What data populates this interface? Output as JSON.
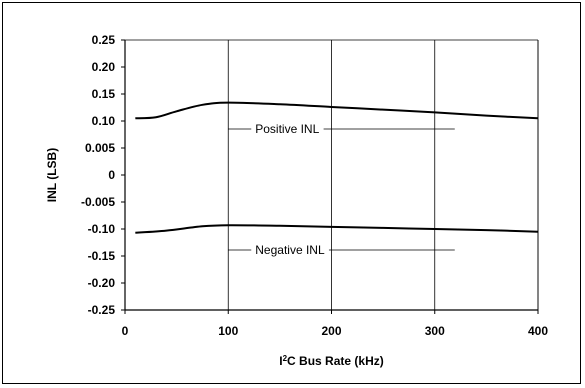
{
  "chart_data": {
    "type": "line",
    "title": "",
    "xlabel": {
      "prefix": "I",
      "sup": "2",
      "rest": "C Bus Rate (kHz)"
    },
    "ylabel": "INL (LSB)",
    "x_ticks": [
      "0",
      "100",
      "200",
      "300",
      "400"
    ],
    "x_tick_values": [
      0,
      100,
      200,
      300,
      400
    ],
    "xlim": [
      0,
      400
    ],
    "y_ticks": [
      "0.25",
      "0.20",
      "0.15",
      "0.10",
      "0.005",
      "0",
      "-0.005",
      "-0.10",
      "-0.15",
      "-0.20",
      "-0.25"
    ],
    "grid": {
      "vertical": true,
      "horizontal": false
    },
    "series": [
      {
        "name": "Positive INL",
        "x": [
          10,
          30,
          50,
          75,
          100,
          150,
          200,
          250,
          300,
          350,
          400
        ],
        "y": [
          0.105,
          0.107,
          0.118,
          0.13,
          0.134,
          0.131,
          0.126,
          0.121,
          0.116,
          0.11,
          0.105
        ]
      },
      {
        "name": "Negative INL",
        "x": [
          10,
          40,
          75,
          100,
          150,
          200,
          250,
          300,
          350,
          400
        ],
        "y": [
          -0.107,
          -0.103,
          -0.095,
          -0.093,
          -0.094,
          -0.096,
          -0.098,
          -0.1,
          -0.102,
          -0.105
        ]
      }
    ],
    "colors": {
      "line": "#000000",
      "grid": "#000000",
      "background": "#ffffff"
    }
  }
}
